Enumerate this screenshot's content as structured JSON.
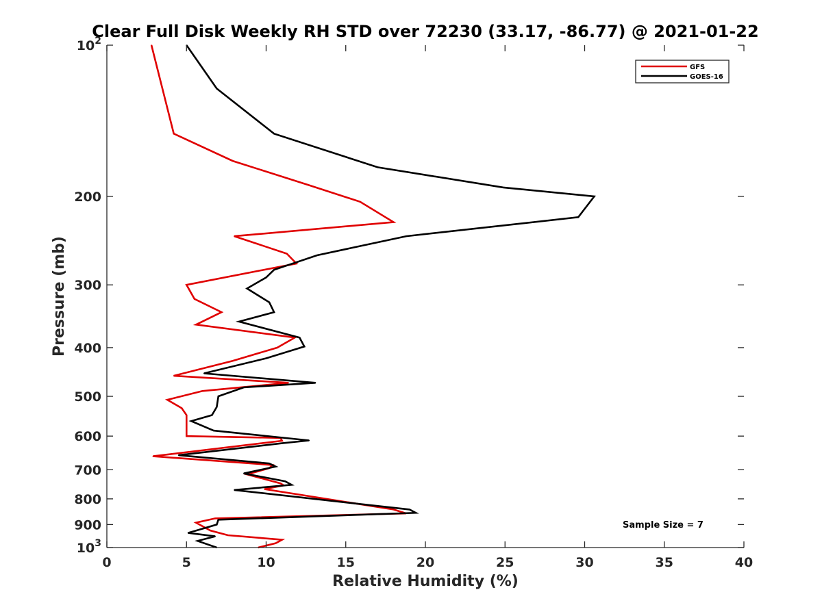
{
  "chart_data": {
    "type": "line",
    "title": "Clear Full Disk Weekly RH STD over 72230 (33.17, -86.77) @ 2021-01-22",
    "xlabel": "Relative Humidity (%)",
    "ylabel": "Pressure (mb)",
    "xlim": [
      0,
      40
    ],
    "ylim": [
      100,
      1000
    ],
    "yscale": "log",
    "xticks": [
      0,
      5,
      10,
      15,
      20,
      25,
      30,
      35,
      40
    ],
    "yticks": [
      {
        "value": 100,
        "base": "10",
        "exp": "2"
      },
      {
        "value": 200,
        "label": "200"
      },
      {
        "value": 300,
        "label": "300"
      },
      {
        "value": 400,
        "label": "400"
      },
      {
        "value": 500,
        "label": "500"
      },
      {
        "value": 600,
        "label": "600"
      },
      {
        "value": 700,
        "label": "700"
      },
      {
        "value": 800,
        "label": "800"
      },
      {
        "value": 900,
        "label": "900"
      },
      {
        "value": 1000,
        "base": "10",
        "exp": "3"
      }
    ],
    "legend_position": "top-right",
    "annotation": "Sample Size = 7",
    "series": [
      {
        "name": "GFS",
        "color": "#e00000",
        "points": [
          [
            2.8,
            100
          ],
          [
            4.2,
            150
          ],
          [
            7.9,
            170
          ],
          [
            12.7,
            190
          ],
          [
            15.9,
            205
          ],
          [
            18.0,
            225
          ],
          [
            8.0,
            240
          ],
          [
            11.3,
            260
          ],
          [
            11.9,
            272
          ],
          [
            5.0,
            300
          ],
          [
            5.5,
            320
          ],
          [
            7.2,
            340
          ],
          [
            5.6,
            360
          ],
          [
            11.8,
            382
          ],
          [
            10.7,
            400
          ],
          [
            7.9,
            425
          ],
          [
            4.2,
            455
          ],
          [
            11.4,
            470
          ],
          [
            6.0,
            488
          ],
          [
            3.8,
            508
          ],
          [
            4.7,
            528
          ],
          [
            5.0,
            545
          ],
          [
            5.0,
            600
          ],
          [
            10.9,
            605
          ],
          [
            11.0,
            613
          ],
          [
            2.9,
            658
          ],
          [
            10.4,
            685
          ],
          [
            10.2,
            695
          ],
          [
            8.8,
            715
          ],
          [
            10.9,
            745
          ],
          [
            11.1,
            752
          ],
          [
            9.9,
            765
          ],
          [
            18.0,
            840
          ],
          [
            18.8,
            855
          ],
          [
            6.8,
            875
          ],
          [
            5.6,
            892
          ],
          [
            6.5,
            925
          ],
          [
            7.6,
            945
          ],
          [
            11.0,
            965
          ],
          [
            10.6,
            980
          ],
          [
            9.5,
            1000
          ]
        ]
      },
      {
        "name": "GOES-16",
        "color": "#000000",
        "points": [
          [
            5.0,
            100
          ],
          [
            6.9,
            122
          ],
          [
            10.5,
            150
          ],
          [
            17.0,
            175
          ],
          [
            24.9,
            192
          ],
          [
            30.6,
            200
          ],
          [
            29.6,
            220
          ],
          [
            18.8,
            240
          ],
          [
            13.2,
            262
          ],
          [
            10.5,
            280
          ],
          [
            10.0,
            290
          ],
          [
            8.8,
            305
          ],
          [
            10.2,
            325
          ],
          [
            10.5,
            340
          ],
          [
            8.3,
            355
          ],
          [
            12.1,
            382
          ],
          [
            12.4,
            398
          ],
          [
            10.0,
            420
          ],
          [
            6.1,
            450
          ],
          [
            13.1,
            470
          ],
          [
            8.6,
            480
          ],
          [
            7.0,
            500
          ],
          [
            6.9,
            525
          ],
          [
            6.6,
            545
          ],
          [
            5.3,
            560
          ],
          [
            6.7,
            585
          ],
          [
            12.7,
            612
          ],
          [
            11.0,
            620
          ],
          [
            4.5,
            655
          ],
          [
            10.2,
            680
          ],
          [
            10.6,
            690
          ],
          [
            8.6,
            712
          ],
          [
            11.2,
            738
          ],
          [
            11.6,
            750
          ],
          [
            8.0,
            768
          ],
          [
            19.0,
            840
          ],
          [
            19.4,
            853
          ],
          [
            7.0,
            880
          ],
          [
            6.9,
            900
          ],
          [
            5.1,
            935
          ],
          [
            6.8,
            950
          ],
          [
            5.7,
            970
          ],
          [
            6.9,
            1000
          ]
        ]
      }
    ]
  }
}
